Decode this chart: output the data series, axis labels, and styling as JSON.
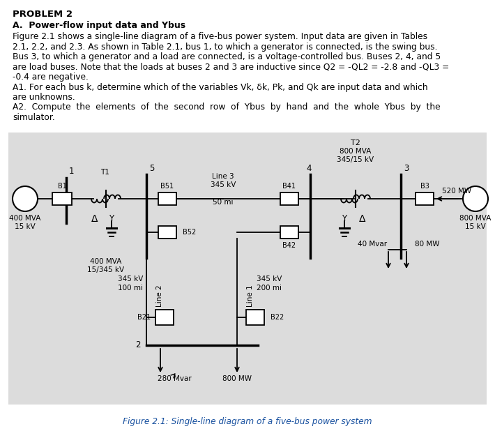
{
  "title_bold": "PROBLEM 2",
  "subtitle": "A.  Power-flow input data and Ybus",
  "body_lines": [
    "Figure 2.1 shows a single-line diagram of a five-bus power system. Input data are given in Tables",
    "2.1, 2.2, and 2.3. As shown in Table 2.1, bus 1, to which a generator is connected, is the swing bus.",
    "Bus 3, to which a generator and a load are connected, is a voltage-controlled bus. Buses 2, 4, and 5",
    "are load buses. Note that the loads at buses 2 and 3 are inductive since Q2 = -QL2 = -2.8 and -QL3 =",
    "-0.4 are negative.",
    "A1. For each bus k, determine which of the variables Vk, δk, Pk, and Qk are input data and which",
    "are unknowns.",
    "A2.  Compute  the  elements  of  the  second  row  of  Ybus  by  hand  and  the  whole  Ybus  by  the",
    "simulator."
  ],
  "figure_caption": "Figure 2.1: Single-line diagram of a five-bus power system",
  "bg_color": "#dcdcdc",
  "white": "#ffffff",
  "black": "#000000",
  "caption_color": "#1a52a0"
}
